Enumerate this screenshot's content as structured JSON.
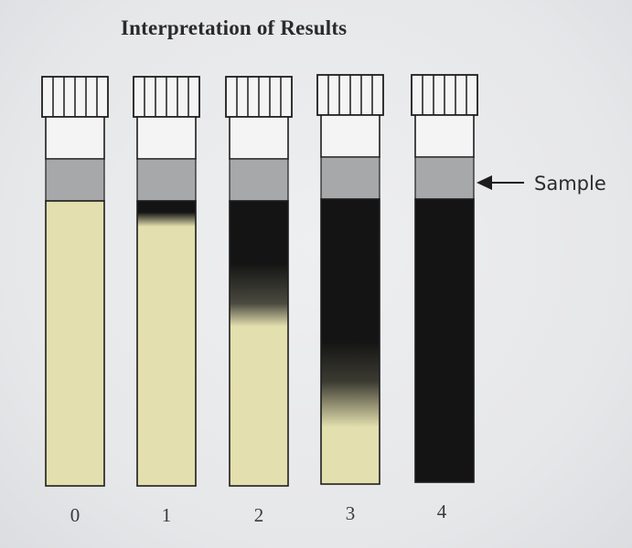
{
  "figure": {
    "title": "Interpretation of Results",
    "sample_label": "Sample"
  },
  "tubes": [
    {
      "label": "0",
      "black_fraction": 0.0
    },
    {
      "label": "1",
      "black_fraction": 0.1
    },
    {
      "label": "2",
      "black_fraction": 0.45
    },
    {
      "label": "3",
      "black_fraction": 0.8
    },
    {
      "label": "4",
      "black_fraction": 1.0
    }
  ],
  "colors": {
    "medium": "#e3dfae",
    "blackened": "#141414",
    "sample_band": "#a7a8aa",
    "outline": "#1d1d1d",
    "tube_glass": "#f4f4f5"
  },
  "icons": {
    "sample_pointer": "left-arrow-icon"
  }
}
